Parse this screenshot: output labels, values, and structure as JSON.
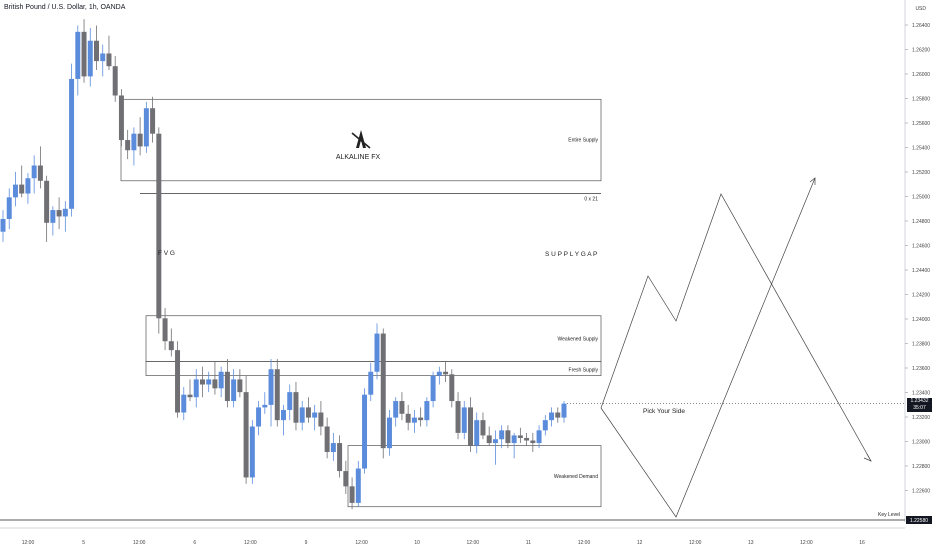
{
  "header": {
    "title": "British Pound / U.S. Dollar, 1h, OANDA",
    "currency": "USD"
  },
  "current_price": {
    "price": "1.23432",
    "countdown": "35:07",
    "color": "#131722"
  },
  "key_level": {
    "label": "Key Level",
    "price": "1.22580"
  },
  "colors": {
    "up": "#5b8cdc",
    "down": "#6f6f74",
    "zone_border": "#555555",
    "line": "#333333",
    "text": "#222222"
  },
  "chart_data": {
    "type": "candlestick",
    "symbol": "GBPUSD",
    "timeframe": "1h",
    "ylim": [
      1.225,
      1.266
    ],
    "y_ticks": [
      "1.26400",
      "1.26200",
      "1.26000",
      "1.25800",
      "1.25600",
      "1.25400",
      "1.25200",
      "1.25000",
      "1.24800",
      "1.24600",
      "1.24400",
      "1.24200",
      "1.24000",
      "1.23800",
      "1.23600",
      "1.23400",
      "1.23200",
      "1.23000",
      "1.22800",
      "1.22600"
    ],
    "x_ticks": [
      "12:00",
      "5",
      "12:00",
      "6",
      "12:00",
      "9",
      "12:00",
      "10",
      "12:00",
      "11",
      "12:00",
      "12",
      "12:00",
      "13",
      "12:00",
      "16"
    ],
    "candles": [
      [
        1.2478,
        1.2495,
        1.247,
        1.2488
      ],
      [
        1.2488,
        1.2512,
        1.248,
        1.2505
      ],
      [
        1.2505,
        1.2525,
        1.2498,
        1.2515
      ],
      [
        1.2515,
        1.253,
        1.2505,
        1.2508
      ],
      [
        1.2508,
        1.2524,
        1.25,
        1.252
      ],
      [
        1.252,
        1.2538,
        1.2508,
        1.253
      ],
      [
        1.253,
        1.2545,
        1.2512,
        1.2518
      ],
      [
        1.2518,
        1.2522,
        1.247,
        1.2485
      ],
      [
        1.2485,
        1.2498,
        1.2475,
        1.2495
      ],
      [
        1.2495,
        1.2505,
        1.248,
        1.249
      ],
      [
        1.249,
        1.2502,
        1.2478,
        1.2496
      ],
      [
        1.2496,
        1.261,
        1.249,
        1.2598
      ],
      [
        1.2598,
        1.264,
        1.2585,
        1.2635
      ],
      [
        1.2635,
        1.2645,
        1.2595,
        1.26
      ],
      [
        1.26,
        1.2638,
        1.2592,
        1.2628
      ],
      [
        1.2628,
        1.264,
        1.2605,
        1.2612
      ],
      [
        1.2612,
        1.2625,
        1.26,
        1.2618
      ],
      [
        1.2618,
        1.2632,
        1.2605,
        1.2608
      ],
      [
        1.2608,
        1.2616,
        1.258,
        1.2585
      ],
      [
        1.2585,
        1.259,
        1.2545,
        1.255
      ],
      [
        1.255,
        1.2558,
        1.2535,
        1.2542
      ],
      [
        1.2542,
        1.256,
        1.253,
        1.2555
      ],
      [
        1.2555,
        1.2568,
        1.2538,
        1.2545
      ],
      [
        1.2545,
        1.258,
        1.254,
        1.2575
      ],
      [
        1.2575,
        1.2584,
        1.2548,
        1.2555
      ],
      [
        1.2555,
        1.256,
        1.2398,
        1.241
      ],
      [
        1.241,
        1.2418,
        1.2385,
        1.2392
      ],
      [
        1.2392,
        1.2402,
        1.238,
        1.2385
      ],
      [
        1.2385,
        1.2392,
        1.2332,
        1.2336
      ],
      [
        1.2336,
        1.2356,
        1.233,
        1.235
      ],
      [
        1.235,
        1.2362,
        1.2345,
        1.2348
      ],
      [
        1.2348,
        1.237,
        1.234,
        1.2362
      ],
      [
        1.2362,
        1.2372,
        1.2348,
        1.2358
      ],
      [
        1.2358,
        1.2368,
        1.2352,
        1.2362
      ],
      [
        1.2362,
        1.2376,
        1.235,
        1.2355
      ],
      [
        1.2355,
        1.2372,
        1.2348,
        1.2368
      ],
      [
        1.2368,
        1.2378,
        1.234,
        1.2345
      ],
      [
        1.2345,
        1.237,
        1.234,
        1.2362
      ],
      [
        1.2362,
        1.237,
        1.2348,
        1.2352
      ],
      [
        1.2352,
        1.2365,
        1.228,
        1.2285
      ],
      [
        1.2285,
        1.233,
        1.228,
        1.2325
      ],
      [
        1.2325,
        1.2345,
        1.2318,
        1.234
      ],
      [
        1.234,
        1.2352,
        1.2335,
        1.2342
      ],
      [
        1.2342,
        1.2378,
        1.2325,
        1.237
      ],
      [
        1.237,
        1.2378,
        1.2325,
        1.233
      ],
      [
        1.233,
        1.2342,
        1.2318,
        1.2338
      ],
      [
        1.2338,
        1.2358,
        1.233,
        1.2352
      ],
      [
        1.2352,
        1.236,
        1.2322,
        1.2328
      ],
      [
        1.2328,
        1.2345,
        1.2322,
        1.234
      ],
      [
        1.234,
        1.2348,
        1.2328,
        1.2332
      ],
      [
        1.2332,
        1.2342,
        1.2322,
        1.2336
      ],
      [
        1.2336,
        1.2345,
        1.2318,
        1.2325
      ],
      [
        1.2325,
        1.2332,
        1.23,
        1.2305
      ],
      [
        1.2305,
        1.232,
        1.2298,
        1.2312
      ],
      [
        1.2312,
        1.2318,
        1.2285,
        1.229
      ],
      [
        1.229,
        1.2298,
        1.2272,
        1.2278
      ],
      [
        1.2278,
        1.2285,
        1.226,
        1.2265
      ],
      [
        1.2265,
        1.2298,
        1.2262,
        1.2292
      ],
      [
        1.2292,
        1.2355,
        1.2288,
        1.235
      ],
      [
        1.235,
        1.2375,
        1.2345,
        1.2368
      ],
      [
        1.2368,
        1.2406,
        1.2362,
        1.2398
      ],
      [
        1.2398,
        1.2402,
        1.23,
        1.2308
      ],
      [
        1.2308,
        1.2338,
        1.2302,
        1.2332
      ],
      [
        1.2332,
        1.2348,
        1.2325,
        1.2345
      ],
      [
        1.2345,
        1.2352,
        1.233,
        1.2335
      ],
      [
        1.2335,
        1.2342,
        1.2322,
        1.2328
      ],
      [
        1.2328,
        1.2338,
        1.232,
        1.2332
      ],
      [
        1.2332,
        1.234,
        1.2325,
        1.233
      ],
      [
        1.233,
        1.2348,
        1.2325,
        1.2345
      ],
      [
        1.2345,
        1.2368,
        1.234,
        1.2365
      ],
      [
        1.2365,
        1.2372,
        1.2358,
        1.2368
      ],
      [
        1.2368,
        1.2376,
        1.236,
        1.2366
      ],
      [
        1.2366,
        1.237,
        1.234,
        1.2345
      ],
      [
        1.2345,
        1.2352,
        1.2315,
        1.232
      ],
      [
        1.232,
        1.2345,
        1.2315,
        1.234
      ],
      [
        1.234,
        1.2348,
        1.2305,
        1.231
      ],
      [
        1.231,
        1.2336,
        1.2304,
        1.233
      ],
      [
        1.233,
        1.2336,
        1.2315,
        1.2318
      ],
      [
        1.2318,
        1.2325,
        1.231,
        1.2312
      ],
      [
        1.2312,
        1.2322,
        1.2295,
        1.2315
      ],
      [
        1.2315,
        1.2326,
        1.2308,
        1.2322
      ],
      [
        1.2322,
        1.2326,
        1.2308,
        1.2312
      ],
      [
        1.2312,
        1.232,
        1.23,
        1.2318
      ],
      [
        1.2318,
        1.2324,
        1.2312,
        1.2316
      ],
      [
        1.2316,
        1.232,
        1.231,
        1.2314
      ],
      [
        1.2314,
        1.232,
        1.2305,
        1.2312
      ],
      [
        1.2312,
        1.2326,
        1.2308,
        1.2322
      ],
      [
        1.2322,
        1.2334,
        1.2318,
        1.233
      ],
      [
        1.233,
        1.234,
        1.2325,
        1.2336
      ],
      [
        1.2336,
        1.234,
        1.2328,
        1.2332
      ],
      [
        1.2332,
        1.2345,
        1.2328,
        1.2343
      ]
    ],
    "zones": [
      {
        "label": "Entire Supply",
        "top": 1.2582,
        "bottom": 1.2518
      },
      {
        "label": "Weakened Supply",
        "top": 1.2412,
        "bottom": 1.2376
      },
      {
        "label": "Fresh Supply",
        "top": 1.2376,
        "bottom": 1.2365
      },
      {
        "label": "Weakened Demand",
        "top": 1.231,
        "bottom": 1.2262
      }
    ],
    "gap_line": {
      "label": "0 x 21",
      "price": 1.2508
    },
    "annotations": {
      "fvg": "F V G",
      "supply_gap": "S U P P L Y   G A P",
      "pick": "Pick Your Side",
      "logo_text": "ALKALINE FX"
    },
    "scenario_paths": [
      [
        [
          1.2338,
          0
        ],
        [
          1.2445,
          1
        ],
        [
          1.2408,
          2
        ],
        [
          1.2508,
          3
        ],
        [
          1.2298,
          4
        ]
      ],
      [
        [
          1.2338,
          0
        ],
        [
          1.2252,
          1
        ],
        [
          1.252,
          2
        ]
      ]
    ]
  }
}
